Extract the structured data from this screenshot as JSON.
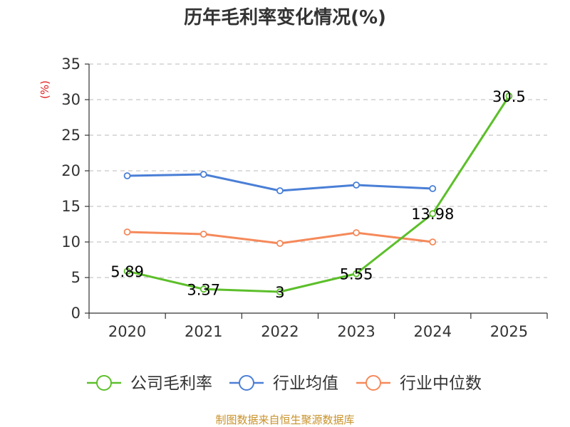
{
  "chart_data": {
    "type": "line",
    "title": "历年毛利率变化情况(%)",
    "ylabel": "(%)",
    "categories": [
      "2020",
      "2021",
      "2022",
      "2023",
      "2024",
      "2025"
    ],
    "ylim": [
      0,
      35
    ],
    "yticks": [
      "0",
      "5",
      "10",
      "15",
      "20",
      "25",
      "30",
      "35"
    ],
    "grid": true,
    "legend_position": "bottom",
    "series": [
      {
        "name": "公司毛利率",
        "color": "#5cbf2a",
        "values": [
          5.89,
          3.37,
          3,
          5.55,
          13.98,
          30.5
        ],
        "labels": [
          "5.89",
          "3.37",
          "3",
          "5.55",
          "13.98",
          "30.5"
        ]
      },
      {
        "name": "行业均值",
        "color": "#4a7fd6",
        "values": [
          19.3,
          19.5,
          17.2,
          18.0,
          17.5,
          null
        ]
      },
      {
        "name": "行业中位数",
        "color": "#f5895a",
        "values": [
          11.4,
          11.1,
          9.8,
          11.3,
          10.0,
          null
        ]
      }
    ],
    "source": "制图数据来自恒生聚源数据库"
  }
}
